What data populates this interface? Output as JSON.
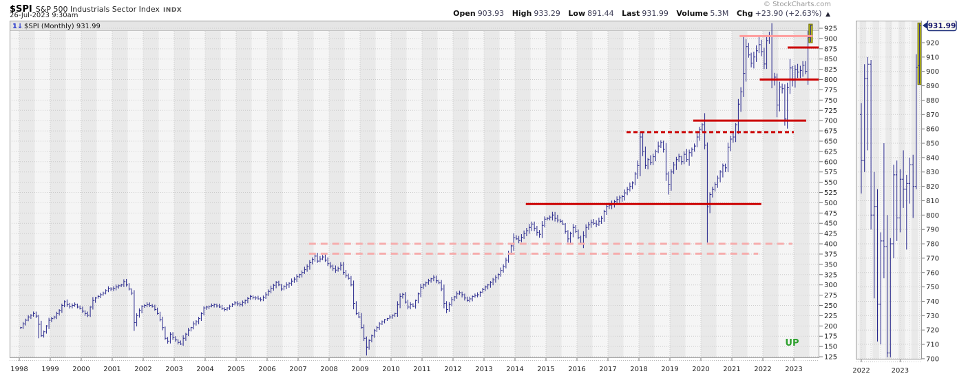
{
  "header": {
    "symbol": "$SPI",
    "name": "S&P 500 Industrials Sector Index",
    "exchange": "INDX",
    "datetime": "26-Jul-2023 9:30am",
    "copyright": "© StockCharts.com",
    "quote": {
      "open_label": "Open",
      "open": "903.93",
      "high_label": "High",
      "high": "933.29",
      "low_label": "Low",
      "low": "891.44",
      "last_label": "Last",
      "last": "931.99",
      "volume_label": "Volume",
      "volume": "5.3M",
      "chg_label": "Chg",
      "chg": "+23.90 (+2.63%)",
      "chg_arrow": "▲"
    }
  },
  "main_chart": {
    "legend_icon": "1↓",
    "legend": "$SPI (Monthly) 931.99",
    "annotation": "UP"
  },
  "colors": {
    "bar": "#26268c",
    "grid": "#cbcbcb",
    "band_dark": "#e9e9e9",
    "band_light": "#f5f5f5",
    "legend_bg": "#e5e5e5",
    "red_line": "#cc0000",
    "pink_line": "#ff9c9c",
    "pink_dashed": "#f6adad",
    "olive_fill": "#b5b520",
    "olive_stroke": "#6e6e00",
    "annotation_green": "#2ca02c",
    "axis_text": "#222222",
    "border": "#999999",
    "tag_border": "#1c2d7a",
    "tag_text": "#18186e",
    "tag_fill": "#fffff4"
  },
  "chart_data": [
    {
      "id": "main",
      "type": "ohlc-bar",
      "title": "$SPI (Monthly)",
      "interval": "monthly",
      "start": "1998-01",
      "end": "2023-07",
      "x_ticks": [
        1998,
        1999,
        2000,
        2001,
        2002,
        2003,
        2004,
        2005,
        2006,
        2007,
        2008,
        2009,
        2010,
        2011,
        2012,
        2013,
        2014,
        2015,
        2016,
        2017,
        2018,
        2019,
        2020,
        2021,
        2022,
        2023
      ],
      "y_ticks": [
        925,
        900,
        875,
        850,
        825,
        800,
        775,
        750,
        725,
        700,
        675,
        650,
        625,
        600,
        575,
        550,
        525,
        500,
        475,
        450,
        425,
        400,
        375,
        350,
        325,
        300,
        275,
        250,
        225,
        200,
        175,
        150,
        125
      ],
      "ylim": [
        125,
        943
      ],
      "closes": [
        196,
        205,
        214,
        222,
        226,
        230,
        224,
        204,
        176,
        186,
        200,
        214,
        218,
        222,
        230,
        238,
        250,
        259,
        252,
        247,
        250,
        252,
        246,
        242,
        236,
        230,
        226,
        246,
        262,
        268,
        272,
        276,
        280,
        286,
        292,
        290,
        292,
        295,
        298,
        300,
        308,
        300,
        290,
        280,
        208,
        225,
        238,
        248,
        250,
        252,
        250,
        248,
        240,
        230,
        215,
        196,
        170,
        163,
        180,
        172,
        166,
        160,
        156,
        170,
        180,
        190,
        196,
        205,
        210,
        218,
        230,
        244,
        246,
        248,
        250,
        252,
        249,
        246,
        243,
        240,
        244,
        248,
        252,
        256,
        254,
        252,
        257,
        262,
        267,
        272,
        270,
        268,
        266,
        264,
        270,
        276,
        284,
        292,
        299,
        306,
        300,
        290,
        296,
        300,
        304,
        309,
        314,
        320,
        325,
        330,
        337,
        345,
        354,
        362,
        370,
        358,
        363,
        368,
        360,
        352,
        346,
        340,
        336,
        340,
        348,
        330,
        322,
        316,
        300,
        255,
        230,
        222,
        196,
        170,
        148,
        165,
        176,
        188,
        196,
        205,
        210,
        215,
        218,
        222,
        226,
        230,
        252,
        272,
        277,
        258,
        246,
        252,
        248,
        262,
        278,
        294,
        300,
        305,
        310,
        315,
        319,
        310,
        305,
        290,
        255,
        240,
        252,
        264,
        271,
        278,
        281,
        276,
        268,
        262,
        266,
        272,
        274,
        276,
        282,
        289,
        295,
        300,
        306,
        312,
        318,
        325,
        335,
        345,
        360,
        375,
        395,
        415,
        412,
        408,
        416,
        425,
        432,
        440,
        448,
        438,
        428,
        423,
        445,
        460,
        462,
        465,
        470,
        462,
        458,
        455,
        448,
        430,
        412,
        425,
        440,
        430,
        415,
        402,
        420,
        440,
        446,
        452,
        450,
        448,
        455,
        462,
        478,
        491,
        494,
        498,
        503,
        508,
        512,
        515,
        524,
        532,
        540,
        548,
        570,
        591,
        660,
        625,
        591,
        605,
        598,
        612,
        625,
        638,
        647,
        630,
        570,
        545,
        575,
        592,
        605,
        612,
        600,
        618,
        605,
        622,
        630,
        638,
        660,
        678,
        690,
        640,
        490,
        520,
        532,
        545,
        560,
        575,
        590,
        585,
        635,
        655,
        660,
        690,
        740,
        770,
        815,
        880,
        860,
        840,
        855,
        870,
        885,
        868,
        838,
        895,
        905,
        800,
        806,
        738,
        782,
        778,
        704,
        780,
        828,
        798,
        825,
        818,
        822,
        835,
        820,
        903,
        931.99
      ],
      "extremes": [
        [
          7,
          "low",
          170
        ],
        [
          44,
          "low",
          188
        ],
        [
          57,
          "low",
          157
        ],
        [
          114,
          "high",
          376
        ],
        [
          117,
          "high",
          373
        ],
        [
          134,
          "low",
          128
        ],
        [
          217,
          "low",
          398
        ],
        [
          240,
          "high",
          673
        ],
        [
          251,
          "low",
          520
        ],
        [
          265,
          "high",
          718
        ],
        [
          266,
          "low",
          403
        ],
        [
          280,
          "high",
          906
        ],
        [
          286,
          "high",
          908
        ]
      ],
      "last_bar": {
        "date": "2023-07",
        "open": 903.93,
        "high": 933.29,
        "low": 891.44,
        "close": 931.99,
        "highlighted": true
      },
      "trendlines": [
        {
          "price": 906,
          "from": 2021.25,
          "to": 2023.6,
          "style": "solid",
          "color": "#ff9c9c",
          "width": 3
        },
        {
          "price": 878,
          "from": 2022.8,
          "to": 2023.85,
          "style": "solid",
          "color": "#cc0000",
          "width": 3
        },
        {
          "price": 800,
          "from": 2021.9,
          "to": 2023.85,
          "style": "solid",
          "color": "#cc0000",
          "width": 3
        },
        {
          "price": 700,
          "from": 2019.75,
          "to": 2023.4,
          "style": "solid",
          "color": "#cc0000",
          "width": 3
        },
        {
          "price": 672,
          "from": 2017.6,
          "to": 2023.0,
          "style": "dashed",
          "color": "#cc0000",
          "width": 3
        },
        {
          "price": 497,
          "from": 2014.35,
          "to": 2021.95,
          "style": "solid",
          "color": "#cc0000",
          "width": 3
        },
        {
          "price": 400,
          "from": 2007.35,
          "to": 2022.95,
          "style": "long-dashed",
          "color": "#f6adad",
          "width": 3
        },
        {
          "price": 376,
          "from": 2007.35,
          "to": 2021.85,
          "style": "long-dashed",
          "color": "#f6adad",
          "width": 3
        }
      ],
      "annotation": {
        "text": "UP",
        "year": 2022.72,
        "price": 152,
        "color": "#2ca02c"
      }
    },
    {
      "id": "zoom",
      "type": "ohlc-bar",
      "interval": "monthly",
      "x_ticks": [
        2022,
        2023
      ],
      "y_ticks": [
        920,
        910,
        900,
        890,
        880,
        870,
        860,
        850,
        840,
        830,
        820,
        810,
        800,
        790,
        780,
        770,
        760,
        750,
        740,
        730,
        720,
        710,
        700
      ],
      "ylim": [
        699,
        935
      ],
      "bars": [
        [
          "2022-01",
          870,
          878,
          815,
          838
        ],
        [
          "2022-02",
          838,
          905,
          830,
          895
        ],
        [
          "2022-03",
          895,
          910,
          845,
          905
        ],
        [
          "2022-04",
          905,
          908,
          790,
          800
        ],
        [
          "2022-05",
          800,
          830,
          742,
          806
        ],
        [
          "2022-06",
          806,
          818,
          712,
          738
        ],
        [
          "2022-07",
          738,
          788,
          710,
          782
        ],
        [
          "2022-08",
          782,
          850,
          756,
          778
        ],
        [
          "2022-09",
          778,
          800,
          701,
          704
        ],
        [
          "2022-10",
          704,
          784,
          701,
          780
        ],
        [
          "2022-11",
          780,
          835,
          770,
          828
        ],
        [
          "2022-12",
          828,
          838,
          782,
          798
        ],
        [
          "2023-01",
          798,
          832,
          788,
          825
        ],
        [
          "2023-02",
          825,
          845,
          805,
          818
        ],
        [
          "2023-03",
          818,
          828,
          776,
          822
        ],
        [
          "2023-04",
          822,
          840,
          808,
          835
        ],
        [
          "2023-05",
          835,
          842,
          798,
          820
        ],
        [
          "2023-06",
          820,
          912,
          818,
          903
        ],
        [
          "2023-07",
          903.93,
          933.29,
          891.44,
          931.99
        ]
      ],
      "price_tag": "931.99"
    }
  ]
}
